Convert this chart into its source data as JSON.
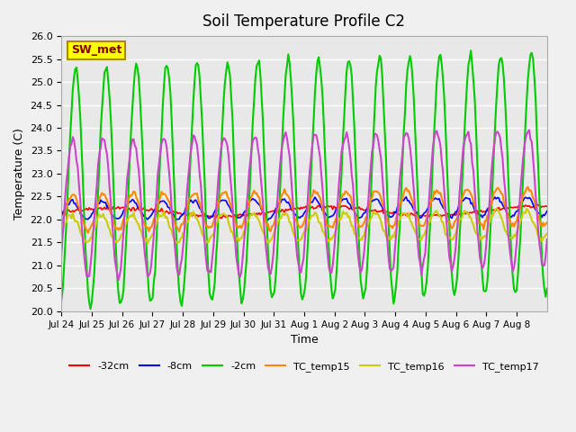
{
  "title": "Soil Temperature Profile C2",
  "xlabel": "Time",
  "ylabel": "Temperature (C)",
  "ylim": [
    20.0,
    26.0
  ],
  "yticks": [
    20.0,
    20.5,
    21.0,
    21.5,
    22.0,
    22.5,
    23.0,
    23.5,
    24.0,
    24.5,
    25.0,
    25.5,
    26.0
  ],
  "xtick_labels": [
    "Jul 24",
    "Jul 25",
    "Jul 26",
    "Jul 27",
    "Jul 28",
    "Jul 29",
    "Jul 30",
    "Jul 31",
    "Aug 1",
    "Aug 2",
    "Aug 3",
    "Aug 4",
    "Aug 5",
    "Aug 6",
    "Aug 7",
    "Aug 8"
  ],
  "series_colors": {
    "-32cm": "#ff0000",
    "-8cm": "#0000ff",
    "-2cm": "#00cc00",
    "TC_temp15": "#ff8800",
    "TC_temp16": "#cccc00",
    "TC_temp17": "#cc44cc"
  },
  "bg_color": "#e8e8e8",
  "annotation_text": "SW_met",
  "annotation_box_color": "#ffff00",
  "annotation_text_color": "#880000",
  "legend_labels": [
    "-32cm",
    "-8cm",
    "-2cm",
    "TC_temp15",
    "TC_temp16",
    "TC_temp17"
  ]
}
